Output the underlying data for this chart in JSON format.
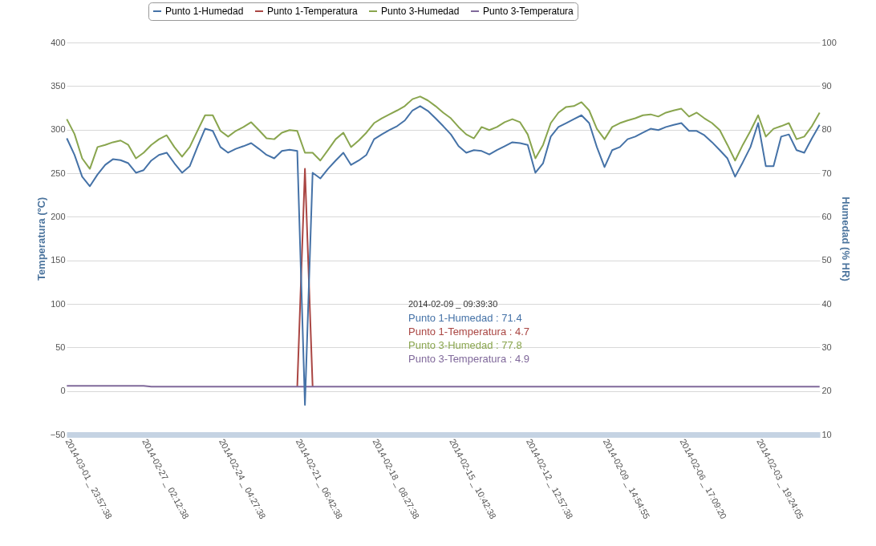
{
  "chart_data": {
    "type": "line",
    "ylabel": "Temperatura (ºC)",
    "y2label": "Humedad (% HR)",
    "categories": [
      "2014-03-01 _ 23:57:38",
      null,
      null,
      null,
      null,
      null,
      null,
      null,
      null,
      null,
      "2014-02-27 _ 02:12:38",
      null,
      null,
      null,
      null,
      null,
      null,
      null,
      null,
      null,
      "2014-02-24 _ 04:27:38",
      null,
      null,
      null,
      null,
      null,
      null,
      null,
      null,
      null,
      "2014-02-21 _ 06:42:38",
      null,
      null,
      null,
      null,
      null,
      null,
      null,
      null,
      null,
      "2014-02-18 _ 08:27:38",
      null,
      null,
      null,
      null,
      null,
      null,
      null,
      null,
      null,
      "2014-02-15 _ 10:42:38",
      null,
      null,
      null,
      null,
      null,
      null,
      null,
      null,
      null,
      "2014-02-12 _ 12:57:38",
      null,
      null,
      null,
      null,
      null,
      null,
      null,
      null,
      null,
      "2014-02-09 _ 14:54:55",
      null,
      null,
      null,
      null,
      null,
      null,
      null,
      null,
      null,
      "2014-02-06 _ 17:09:20",
      null,
      null,
      null,
      null,
      null,
      null,
      null,
      null,
      null,
      "2014-02-03 _ 19:24:05",
      null,
      null,
      null,
      null,
      null,
      null,
      null,
      null
    ],
    "series": [
      {
        "name": "Punto 1-Humedad",
        "color": "#4572a7",
        "axis": "y2",
        "values": [
          78.0,
          74.2,
          69.2,
          67.0,
          69.7,
          71.9,
          73.2,
          73.0,
          72.3,
          70.1,
          70.7,
          72.9,
          74.2,
          74.7,
          72.3,
          70.1,
          71.6,
          76.0,
          80.2,
          79.7,
          76.0,
          74.7,
          75.6,
          76.2,
          76.9,
          75.6,
          74.2,
          73.4,
          75.1,
          75.4,
          75.1,
          16.8,
          70.1,
          68.8,
          71.0,
          72.9,
          74.7,
          71.9,
          72.9,
          74.2,
          77.8,
          78.9,
          79.9,
          80.8,
          82.1,
          84.4,
          85.4,
          84.3,
          82.6,
          80.8,
          78.9,
          76.2,
          74.7,
          75.3,
          75.1,
          74.3,
          75.3,
          76.2,
          77.1,
          76.9,
          76.5,
          70.1,
          72.3,
          78.4,
          80.6,
          81.5,
          82.4,
          83.3,
          81.5,
          76.0,
          71.4,
          75.3,
          76.0,
          77.8,
          78.4,
          79.3,
          80.2,
          79.9,
          80.6,
          81.1,
          81.5,
          79.7,
          79.7,
          78.7,
          77.1,
          75.3,
          73.4,
          69.2,
          72.5,
          76.0,
          81.5,
          71.6,
          71.6,
          78.4,
          78.9,
          75.3,
          74.7,
          78.0,
          81.1
        ]
      },
      {
        "name": "Punto 1-Temperatura",
        "color": "#aa4643",
        "axis": "y",
        "values": [
          null,
          null,
          null,
          null,
          null,
          null,
          null,
          null,
          null,
          null,
          null,
          null,
          null,
          null,
          null,
          null,
          null,
          null,
          null,
          null,
          null,
          null,
          null,
          null,
          null,
          null,
          null,
          null,
          null,
          null,
          5,
          255,
          5,
          null,
          null,
          null,
          null,
          null,
          null,
          null,
          null,
          null,
          null,
          null,
          null,
          null,
          null,
          null,
          null,
          null,
          null,
          null,
          null,
          null,
          null,
          null,
          null,
          null,
          null,
          null,
          null,
          null,
          null,
          null,
          null,
          null,
          null,
          null,
          null,
          null,
          null,
          null,
          null,
          null,
          null,
          null,
          null,
          null,
          null,
          null,
          null,
          null,
          null,
          null,
          null,
          null,
          null,
          null,
          null,
          null,
          null,
          null,
          null,
          null,
          null,
          null,
          null,
          null,
          null
        ]
      },
      {
        "name": "Punto 3-Humedad",
        "color": "#89a54e",
        "axis": "y2",
        "values": [
          82.4,
          79.0,
          73.4,
          71.0,
          76.0,
          76.5,
          77.1,
          77.5,
          76.5,
          73.4,
          74.7,
          76.5,
          77.8,
          78.7,
          76.0,
          73.8,
          76.0,
          79.7,
          83.3,
          83.3,
          79.7,
          78.4,
          79.7,
          80.6,
          81.7,
          79.9,
          78.0,
          77.8,
          79.3,
          79.9,
          79.7,
          74.7,
          74.7,
          72.9,
          75.3,
          77.8,
          79.3,
          76.0,
          77.5,
          79.3,
          81.5,
          82.6,
          83.5,
          84.4,
          85.4,
          87.0,
          87.6,
          86.7,
          85.4,
          83.9,
          82.6,
          80.6,
          78.9,
          78.0,
          80.6,
          79.9,
          80.6,
          81.7,
          82.4,
          81.7,
          78.9,
          73.4,
          76.5,
          81.5,
          83.9,
          85.2,
          85.4,
          86.3,
          84.4,
          80.2,
          77.8,
          80.6,
          81.5,
          82.1,
          82.6,
          83.3,
          83.5,
          83.0,
          83.9,
          84.4,
          84.8,
          83.0,
          83.9,
          82.6,
          81.5,
          79.9,
          76.5,
          72.9,
          76.5,
          79.7,
          83.3,
          78.4,
          80.2,
          80.8,
          81.5,
          77.8,
          78.4,
          80.8,
          83.9
        ]
      },
      {
        "name": "Punto 3-Temperatura",
        "color": "#80699b",
        "axis": "y",
        "values": [
          6,
          6,
          6,
          6,
          6,
          6,
          6,
          6,
          6,
          6,
          6,
          5,
          5,
          5,
          5,
          5,
          5,
          5,
          5,
          5,
          5,
          5,
          5,
          5,
          5,
          5,
          5,
          5,
          5,
          5,
          5,
          5,
          5,
          5,
          5,
          5,
          5,
          5,
          5,
          5,
          5,
          5,
          5,
          5,
          5,
          5,
          5,
          5,
          5,
          5,
          5,
          5,
          5,
          5,
          5,
          5,
          5,
          5,
          5,
          5,
          5,
          5,
          5,
          5,
          5,
          5,
          5,
          5,
          5,
          5,
          5,
          5,
          5,
          5,
          5,
          5,
          5,
          5,
          5,
          5,
          5,
          5,
          5,
          5,
          5,
          5,
          5,
          5,
          5,
          5,
          5,
          5,
          5,
          5,
          5,
          5,
          5,
          5,
          5
        ]
      }
    ],
    "ylim": [
      -50,
      400
    ],
    "yticks": [
      -50,
      0,
      50,
      100,
      150,
      200,
      250,
      300,
      350,
      400
    ],
    "y2lim": [
      10,
      100
    ],
    "y2ticks": [
      10,
      20,
      30,
      40,
      50,
      60,
      70,
      80,
      90,
      100
    ],
    "grid": "y",
    "legend": "top",
    "marker": "none",
    "line_style": "solid",
    "annotations": [
      "2014-02-09 _ 09:39:30",
      "Punto 1-Humedad :  71.4",
      "Punto 1-Temperatura :  4.7",
      "Punto 3-Humedad :  77.8",
      "Punto 3-Temperatura :  4.9"
    ]
  }
}
